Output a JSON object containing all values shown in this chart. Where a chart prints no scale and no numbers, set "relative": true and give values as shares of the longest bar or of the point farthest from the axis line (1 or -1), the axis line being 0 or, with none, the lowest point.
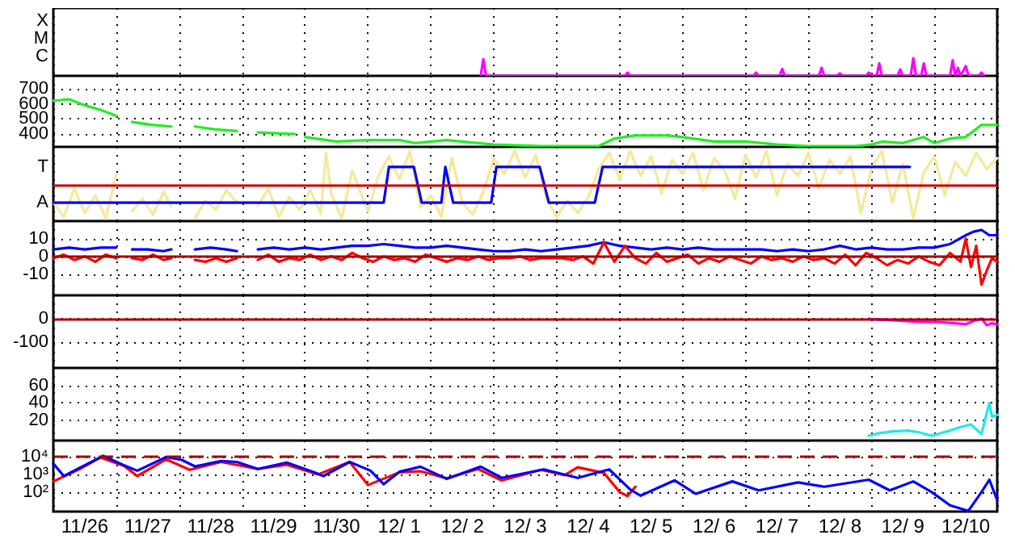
{
  "chart_data": [
    {
      "type": "line",
      "relative": true,
      "annotations": [
        "X",
        "M",
        "C"
      ],
      "grid": "x",
      "tick_labels": false,
      "xlim": [
        "--11-26T00:00",
        "--12-11T00:00"
      ],
      "xticks": [
        {
          "value": "--11-26T00:00",
          "label": null
        },
        {
          "value": "--11-27T00:00",
          "label": null
        },
        {
          "value": "--11-28T00:00",
          "label": null
        },
        {
          "value": "--11-29T00:00",
          "label": null
        },
        {
          "value": "--11-30T00:00",
          "label": null
        },
        {
          "value": "--12-01T00:00",
          "label": null
        },
        {
          "value": "--12-02T00:00",
          "label": null
        },
        {
          "value": "--12-03T00:00",
          "label": null
        },
        {
          "value": "--12-04T00:00",
          "label": null
        },
        {
          "value": "--12-05T00:00",
          "label": null
        },
        {
          "value": "--12-06T00:00",
          "label": null
        },
        {
          "value": "--12-07T00:00",
          "label": null
        },
        {
          "value": "--12-08T00:00",
          "label": null
        },
        {
          "value": "--12-09T00:00",
          "label": null
        },
        {
          "value": "--12-10T00:00",
          "label": null
        },
        {
          "value": "--12-11T00:00",
          "label": null
        }
      ],
      "series": [
        {
          "color": "#ff00ff",
          "x": [
            "--12-02T19:00",
            "--12-02T20:00",
            "--12-02T21:00",
            "--12-05T02:00",
            "--12-05T03:00",
            "--12-05T04:00",
            "--12-07T03:00",
            "--12-07T04:00",
            "--12-07T05:00",
            "--12-07T13:00",
            "--12-07T14:00",
            "--12-07T15:00",
            "--12-08T04:00",
            "--12-08T05:00",
            "--12-08T06:00",
            "--12-08T11:00",
            "--12-08T12:00",
            "--12-08T13:00",
            "--12-08T22:00",
            "--12-08T23:00",
            "--12-09T01:00",
            "--12-09T02:00",
            "--12-09T03:00",
            "--12-09T04:00",
            "--12-09T10:00",
            "--12-09T11:00",
            "--12-09T12:00",
            "--12-09T15:00",
            "--12-09T16:00",
            "--12-09T17:00",
            "--12-09T19:00",
            "--12-09T20:00",
            "--12-09T21:00",
            "--12-10T06:00",
            "--12-10T07:00",
            "--12-10T08:00",
            "--12-10T09:00",
            "--12-10T10:00",
            "--12-10T12:00",
            "--12-10T13:00",
            "--12-10T17:00",
            "--12-10T18:00",
            "--12-10T19:00"
          ],
          "values": [
            0,
            0.94,
            0,
            0,
            0.18,
            0,
            0,
            0.18,
            0,
            0,
            0.39,
            0,
            0,
            0.45,
            0,
            0,
            0.14,
            0,
            0,
            0.18,
            0,
            0,
            0.7,
            0,
            0,
            0.36,
            0,
            0,
            1,
            0,
            0,
            0.7,
            0,
            0,
            0.88,
            0,
            0.45,
            0,
            0.55,
            0,
            0,
            0.18,
            0
          ]
        }
      ]
    },
    {
      "type": "line",
      "ylim": [
        315,
        785
      ],
      "yticks": [
        700,
        600,
        500,
        400
      ],
      "grid": true,
      "tick_labels": "y",
      "xlim": [
        "--11-26T00:00",
        "--12-11T00:00"
      ],
      "xticks": [
        {
          "value": "--11-26T00:00",
          "label": null
        },
        {
          "value": "--11-27T00:00",
          "label": null
        },
        {
          "value": "--11-28T00:00",
          "label": null
        },
        {
          "value": "--11-29T00:00",
          "label": null
        },
        {
          "value": "--11-30T00:00",
          "label": null
        },
        {
          "value": "--12-01T00:00",
          "label": null
        },
        {
          "value": "--12-02T00:00",
          "label": null
        },
        {
          "value": "--12-03T00:00",
          "label": null
        },
        {
          "value": "--12-04T00:00",
          "label": null
        },
        {
          "value": "--12-05T00:00",
          "label": null
        },
        {
          "value": "--12-06T00:00",
          "label": null
        },
        {
          "value": "--12-07T00:00",
          "label": null
        },
        {
          "value": "--12-08T00:00",
          "label": null
        },
        {
          "value": "--12-09T00:00",
          "label": null
        },
        {
          "value": "--12-10T00:00",
          "label": null
        },
        {
          "value": "--12-11T00:00",
          "label": null
        }
      ],
      "series": [
        {
          "color": "#22ee22",
          "x": [
            "--11-26T00:00",
            "--11-26T06:00",
            "--11-26T12:00",
            "--11-26T18:00",
            "--11-27T00:00",
            "--11-27T03:00",
            "--11-27T06:00",
            "--11-27T14:00",
            "--11-27T21:00",
            "--11-28T02:00",
            "--11-28T06:00",
            "--11-28T14:00",
            "--11-28T22:00",
            "--11-29T02:00",
            "--11-29T06:00",
            "--11-29T20:00",
            "--11-29T22:00",
            "--11-30T00:00",
            "--11-30T12:00",
            "--12-01T00:00",
            "--12-01T12:00",
            "--12-01T18:00",
            "--12-02T06:00",
            "--12-02T18:00",
            "--12-03T00:00",
            "--12-03T18:00",
            "--12-04T00:00",
            "--12-04T12:00",
            "--12-04T16:00",
            "--12-04T22:00",
            "--12-05T06:00",
            "--12-05T18:00",
            "--12-06T00:00",
            "--12-06T12:00",
            "--12-07T00:00",
            "--12-07T12:00",
            "--12-08T00:00",
            "--12-08T12:00",
            "--12-08T18:00",
            "--12-09T00:00",
            "--12-09T04:00",
            "--12-09T12:00",
            "--12-09T20:00",
            "--12-10T00:00",
            "--12-10T06:00",
            "--12-10T12:00",
            "--12-10T18:00",
            "--12-11T00:00"
          ],
          "values": [
            620,
            630,
            590,
            560,
            520,
            null,
            480,
            460,
            450,
            null,
            450,
            430,
            420,
            null,
            410,
            400,
            null,
            380,
            350,
            360,
            360,
            340,
            360,
            340,
            330,
            320,
            320,
            320,
            320,
            370,
            390,
            390,
            380,
            350,
            350,
            330,
            320,
            320,
            320,
            330,
            350,
            340,
            380,
            340,
            370,
            380,
            460,
            460
          ]
        }
      ]
    },
    {
      "type": "line",
      "relative": true,
      "annotations": [
        "T",
        "A"
      ],
      "grid": "x",
      "tick_labels": false,
      "xlim": [
        "--11-26T00:00",
        "--12-11T00:00"
      ],
      "xticks": [
        {
          "value": "--11-26T00:00",
          "label": null
        },
        {
          "value": "--11-27T00:00",
          "label": null
        },
        {
          "value": "--11-28T00:00",
          "label": null
        },
        {
          "value": "--11-29T00:00",
          "label": null
        },
        {
          "value": "--11-30T00:00",
          "label": null
        },
        {
          "value": "--12-01T00:00",
          "label": null
        },
        {
          "value": "--12-02T00:00",
          "label": null
        },
        {
          "value": "--12-03T00:00",
          "label": null
        },
        {
          "value": "--12-04T00:00",
          "label": null
        },
        {
          "value": "--12-05T00:00",
          "label": null
        },
        {
          "value": "--12-06T00:00",
          "label": null
        },
        {
          "value": "--12-07T00:00",
          "label": null
        },
        {
          "value": "--12-08T00:00",
          "label": null
        },
        {
          "value": "--12-09T00:00",
          "label": null
        },
        {
          "value": "--12-10T00:00",
          "label": null
        },
        {
          "value": "--12-11T00:00",
          "label": null
        }
      ],
      "ref_lines": [
        {
          "axis": "y",
          "value": 0,
          "color": "#cc0000"
        }
      ],
      "series": [
        {
          "color": "#f7e79a",
          "x": [
            "--11-26T00:00",
            "--11-26T04:00",
            "--11-26T08:00",
            "--11-26T12:00",
            "--11-26T16:00",
            "--11-26T20:00",
            "--11-27T00:00",
            "--11-27T03:00",
            "--11-27T06:00",
            "--11-27T10:00",
            "--11-27T14:00",
            "--11-27T18:00",
            "--11-27T21:00",
            "--11-28T02:00",
            "--11-28T06:00",
            "--11-28T10:00",
            "--11-28T14:00",
            "--11-28T18:00",
            "--11-28T22:00",
            "--11-29T02:00",
            "--11-29T06:00",
            "--11-29T10:00",
            "--11-29T14:00",
            "--11-29T18:00",
            "--11-29T22:00",
            "--11-30T02:00",
            "--11-30T06:00",
            "--11-30T08:00",
            "--11-30T10:00",
            "--11-30T14:00",
            "--11-30T18:00",
            "--12-01T00:00",
            "--12-01T04:00",
            "--12-01T08:00",
            "--12-01T12:00",
            "--12-01T16:00",
            "--12-01T20:00",
            "--12-02T00:00",
            "--12-02T04:00",
            "--12-02T08:00",
            "--12-02T12:00",
            "--12-02T16:00",
            "--12-02T20:00",
            "--12-03T00:00",
            "--12-03T04:00",
            "--12-03T08:00",
            "--12-03T12:00",
            "--12-03T16:00",
            "--12-03T20:00",
            "--12-04T00:00",
            "--12-04T04:00",
            "--12-04T08:00",
            "--12-04T12:00",
            "--12-04T16:00",
            "--12-04T20:00",
            "--12-05T00:00",
            "--12-05T04:00",
            "--12-05T08:00",
            "--12-05T12:00",
            "--12-05T16:00",
            "--12-05T20:00",
            "--12-06T00:00",
            "--12-06T04:00",
            "--12-06T08:00",
            "--12-06T12:00",
            "--12-06T16:00",
            "--12-06T20:00",
            "--12-07T00:00",
            "--12-07T04:00",
            "--12-07T08:00",
            "--12-07T12:00",
            "--12-07T16:00",
            "--12-07T20:00",
            "--12-08T00:00",
            "--12-08T04:00",
            "--12-08T08:00",
            "--12-08T12:00",
            "--12-08T16:00",
            "--12-08T20:00",
            "--12-09T00:00",
            "--12-09T04:00",
            "--12-09T08:00",
            "--12-09T12:00",
            "--12-09T16:00",
            "--12-09T20:00",
            "--12-10T00:00",
            "--12-10T04:00",
            "--12-10T08:00",
            "--12-10T12:00",
            "--12-10T16:00",
            "--12-10T20:00",
            "--12-11T00:00"
          ],
          "values": [
            -0.53,
            -0.95,
            -0.11,
            -0.84,
            -0.32,
            -1,
            0.32,
            null,
            -0.79,
            -0.42,
            -0.89,
            -0.21,
            -0.63,
            null,
            -1,
            -0.47,
            -0.74,
            -0.16,
            -0.53,
            null,
            -0.63,
            -0.11,
            -0.95,
            -0.37,
            -0.74,
            -0.16,
            -0.84,
            0.95,
            -0.26,
            -1,
            0.42,
            -0.79,
            0.26,
            0.84,
            0.16,
            1,
            -0.68,
            -0.32,
            -0.95,
            0.79,
            -0.53,
            -0.89,
            -0.21,
            0.79,
            0.32,
            1,
            0.21,
            0.89,
            -0.42,
            -0.95,
            -0.47,
            -0.84,
            -0.37,
            0.47,
            0.95,
            0.16,
            1,
            0.26,
            0.84,
            -0.26,
            0.74,
            0.32,
            0.95,
            -0.16,
            0.79,
            0.42,
            -0.42,
            0.89,
            0.21,
            1,
            -0.32,
            0.63,
            0.26,
            0.95,
            -0.11,
            0.74,
            0.32,
            0.84,
            -0.84,
            0.47,
            1,
            -0.53,
            0.63,
            -1,
            0.37,
            0.84,
            -0.32,
            0.68,
            0.26,
            0.95,
            0.47,
            0.79
          ]
        },
        {
          "color": "#0000ff",
          "x": [
            "--11-26T00:00",
            "--12-01T06:00",
            "--12-01T08:00",
            "--12-01T17:30",
            "--12-01T20:30",
            "--12-02T04:00",
            "--12-02T05:30",
            "--12-02T08:30",
            "--12-02T23:00",
            "--12-03T01:00",
            "--12-03T17:30",
            "--12-03T21:00",
            "--12-04T14:30",
            "--12-04T17:30",
            "--12-09T14:40"
          ],
          "values": [
            -0.53,
            -0.53,
            0.53,
            0.53,
            -0.53,
            -0.53,
            0.53,
            -0.53,
            -0.53,
            0.53,
            0.53,
            -0.53,
            -0.53,
            0.53,
            0.53
          ]
        }
      ]
    },
    {
      "type": "line",
      "ylim": [
        -22,
        20
      ],
      "yticks": [
        10,
        0,
        -10
      ],
      "grid": true,
      "tick_labels": "y",
      "xlim": [
        "--11-26T00:00",
        "--12-11T00:00"
      ],
      "xticks": [
        {
          "value": "--11-26T00:00",
          "label": null
        },
        {
          "value": "--11-27T00:00",
          "label": null
        },
        {
          "value": "--11-28T00:00",
          "label": null
        },
        {
          "value": "--11-29T00:00",
          "label": null
        },
        {
          "value": "--11-30T00:00",
          "label": null
        },
        {
          "value": "--12-01T00:00",
          "label": null
        },
        {
          "value": "--12-02T00:00",
          "label": null
        },
        {
          "value": "--12-03T00:00",
          "label": null
        },
        {
          "value": "--12-04T00:00",
          "label": null
        },
        {
          "value": "--12-05T00:00",
          "label": null
        },
        {
          "value": "--12-06T00:00",
          "label": null
        },
        {
          "value": "--12-07T00:00",
          "label": null
        },
        {
          "value": "--12-08T00:00",
          "label": null
        },
        {
          "value": "--12-09T00:00",
          "label": null
        },
        {
          "value": "--12-10T00:00",
          "label": null
        },
        {
          "value": "--12-11T00:00",
          "label": null
        }
      ],
      "ref_lines": [
        {
          "axis": "y",
          "value": 0,
          "color": "#aa0000"
        }
      ],
      "series": [
        {
          "color": "#0000ff",
          "x": [
            "--11-26T00:00",
            "--11-26T06:00",
            "--11-26T12:00",
            "--11-26T18:00",
            "--11-27T00:00",
            "--11-27T03:00",
            "--11-27T06:00",
            "--11-27T12:00",
            "--11-27T18:00",
            "--11-27T21:00",
            "--11-28T02:00",
            "--11-28T06:00",
            "--11-28T12:00",
            "--11-28T18:00",
            "--11-28T22:00",
            "--11-29T02:00",
            "--11-29T06:00",
            "--11-29T12:00",
            "--11-29T18:00",
            "--11-30T00:00",
            "--11-30T06:00",
            "--11-30T12:00",
            "--11-30T18:00",
            "--12-01T00:00",
            "--12-01T06:00",
            "--12-01T12:00",
            "--12-01T18:00",
            "--12-02T00:00",
            "--12-02T06:00",
            "--12-02T12:00",
            "--12-02T18:00",
            "--12-03T00:00",
            "--12-03T06:00",
            "--12-03T12:00",
            "--12-03T18:00",
            "--12-04T00:00",
            "--12-04T06:00",
            "--12-04T12:00",
            "--12-04T18:00",
            "--12-05T00:00",
            "--12-05T06:00",
            "--12-05T12:00",
            "--12-05T18:00",
            "--12-06T00:00",
            "--12-06T06:00",
            "--12-06T12:00",
            "--12-06T18:00",
            "--12-07T00:00",
            "--12-07T06:00",
            "--12-07T12:00",
            "--12-07T18:00",
            "--12-08T00:00",
            "--12-08T06:00",
            "--12-08T12:00",
            "--12-08T18:00",
            "--12-09T00:00",
            "--12-09T06:00",
            "--12-09T12:00",
            "--12-09T18:00",
            "--12-10T00:00",
            "--12-10T06:00",
            "--12-10T12:00",
            "--12-10T15:00",
            "--12-10T18:00",
            "--12-10T21:00",
            "--12-11T00:00"
          ],
          "values": [
            4,
            5,
            4,
            5,
            5,
            null,
            4,
            4,
            3,
            4,
            null,
            4,
            5,
            4,
            3,
            null,
            4,
            5,
            4,
            5,
            4,
            5,
            6,
            6,
            7,
            6,
            5,
            5,
            6,
            5,
            4,
            3,
            3,
            4,
            3,
            4,
            5,
            6,
            8,
            6,
            5,
            4,
            5,
            4,
            5,
            4,
            4,
            4,
            4,
            3,
            4,
            3,
            4,
            6,
            4,
            5,
            4,
            4,
            5,
            5,
            7,
            12,
            14,
            15,
            12,
            12
          ]
        },
        {
          "color": "#ff0000",
          "x": [
            "--11-26T00:00",
            "--11-26T04:00",
            "--11-26T08:00",
            "--11-26T12:00",
            "--11-26T16:00",
            "--11-26T20:00",
            "--11-27T00:00",
            "--11-27T03:00",
            "--11-27T06:00",
            "--11-27T10:00",
            "--11-27T14:00",
            "--11-27T18:00",
            "--11-27T21:00",
            "--11-28T02:00",
            "--11-28T06:00",
            "--11-28T10:00",
            "--11-28T14:00",
            "--11-28T18:00",
            "--11-28T22:00",
            "--11-29T02:00",
            "--11-29T06:00",
            "--11-29T10:00",
            "--11-29T14:00",
            "--11-29T18:00",
            "--11-29T22:00",
            "--11-30T02:00",
            "--11-30T06:00",
            "--11-30T10:00",
            "--11-30T14:00",
            "--11-30T18:00",
            "--11-30T22:00",
            "--12-01T02:00",
            "--12-01T06:00",
            "--12-01T10:00",
            "--12-01T14:00",
            "--12-01T18:00",
            "--12-01T22:00",
            "--12-02T02:00",
            "--12-02T06:00",
            "--12-02T10:00",
            "--12-02T14:00",
            "--12-02T18:00",
            "--12-02T22:00",
            "--12-03T02:00",
            "--12-03T06:00",
            "--12-03T10:00",
            "--12-03T14:00",
            "--12-03T18:00",
            "--12-03T22:00",
            "--12-04T02:00",
            "--12-04T06:00",
            "--12-04T10:00",
            "--12-04T14:00",
            "--12-04T18:00",
            "--12-04T22:00",
            "--12-05T02:00",
            "--12-05T06:00",
            "--12-05T10:00",
            "--12-05T14:00",
            "--12-05T18:00",
            "--12-05T22:00",
            "--12-06T02:00",
            "--12-06T06:00",
            "--12-06T10:00",
            "--12-06T14:00",
            "--12-06T18:00",
            "--12-06T22:00",
            "--12-07T02:00",
            "--12-07T06:00",
            "--12-07T10:00",
            "--12-07T14:00",
            "--12-07T18:00",
            "--12-07T22:00",
            "--12-08T02:00",
            "--12-08T06:00",
            "--12-08T10:00",
            "--12-08T14:00",
            "--12-08T18:00",
            "--12-08T22:00",
            "--12-09T02:00",
            "--12-09T06:00",
            "--12-09T10:00",
            "--12-09T14:00",
            "--12-09T18:00",
            "--12-09T22:00",
            "--12-10T02:00",
            "--12-10T06:00",
            "--12-10T10:00",
            "--12-10T12:00",
            "--12-10T14:00",
            "--12-10T16:00",
            "--12-10T18:00",
            "--12-10T20:00",
            "--12-10T22:00",
            "--12-11T00:00"
          ],
          "values": [
            -1,
            1,
            -2,
            0,
            -3,
            1,
            -1,
            null,
            -1,
            -2,
            1,
            -2,
            -1,
            null,
            -2,
            -3,
            -1,
            -3,
            -1,
            null,
            -2,
            1,
            -3,
            -1,
            -2,
            1,
            -2,
            0,
            -2,
            2,
            -1,
            -3,
            0,
            -2,
            -1,
            -3,
            1,
            -1,
            -3,
            -1,
            -2,
            0,
            -2,
            -1,
            -1,
            0,
            -2,
            -1,
            -1,
            -1,
            -2,
            0,
            -4,
            8,
            -3,
            6,
            -1,
            -4,
            2,
            -3,
            -1,
            1,
            -4,
            -1,
            -3,
            0,
            -2,
            -4,
            0,
            -2,
            -1,
            -3,
            0,
            -2,
            -1,
            -4,
            1,
            -5,
            2,
            -1,
            -5,
            -2,
            -4,
            0,
            -3,
            -5,
            2,
            -3,
            10,
            -6,
            6,
            -16,
            -8,
            -1,
            -3
          ]
        }
      ]
    },
    {
      "type": "line",
      "ylim": [
        -212,
        100
      ],
      "yticks": [
        0,
        -100
      ],
      "grid": true,
      "tick_labels": "y",
      "xlim": [
        "--11-26T00:00",
        "--12-11T00:00"
      ],
      "xticks": [
        {
          "value": "--11-26T00:00",
          "label": null
        },
        {
          "value": "--11-27T00:00",
          "label": null
        },
        {
          "value": "--11-28T00:00",
          "label": null
        },
        {
          "value": "--11-29T00:00",
          "label": null
        },
        {
          "value": "--11-30T00:00",
          "label": null
        },
        {
          "value": "--12-01T00:00",
          "label": null
        },
        {
          "value": "--12-02T00:00",
          "label": null
        },
        {
          "value": "--12-03T00:00",
          "label": null
        },
        {
          "value": "--12-04T00:00",
          "label": null
        },
        {
          "value": "--12-05T00:00",
          "label": null
        },
        {
          "value": "--12-06T00:00",
          "label": null
        },
        {
          "value": "--12-07T00:00",
          "label": null
        },
        {
          "value": "--12-08T00:00",
          "label": null
        },
        {
          "value": "--12-09T00:00",
          "label": null
        },
        {
          "value": "--12-10T00:00",
          "label": null
        },
        {
          "value": "--12-11T00:00",
          "label": null
        }
      ],
      "ref_lines": [
        {
          "axis": "y",
          "value": 0,
          "color": "#aa0000"
        }
      ],
      "series": [
        {
          "color": "#ff00ff",
          "x": [
            "--12-08T23:00",
            "--12-09T00:00",
            "--12-09T06:00",
            "--12-09T12:00",
            "--12-09T18:00",
            "--12-10T00:00",
            "--12-10T06:00",
            "--12-10T12:00",
            "--12-10T15:00",
            "--12-10T18:00",
            "--12-10T20:00",
            "--12-10T22:00",
            "--12-11T00:00"
          ],
          "values": [
            0,
            -3,
            -5,
            -10,
            -14,
            -14,
            -18,
            -24,
            -10,
            0,
            -28,
            -20,
            -25
          ]
        }
      ]
    },
    {
      "type": "line",
      "ylim": [
        -3.5,
        80
      ],
      "yticks": [
        60,
        40,
        20
      ],
      "grid": true,
      "tick_labels": "y",
      "xlim": [
        "--11-26T00:00",
        "--12-11T00:00"
      ],
      "xticks": [
        {
          "value": "--11-26T00:00",
          "label": null
        },
        {
          "value": "--11-27T00:00",
          "label": null
        },
        {
          "value": "--11-28T00:00",
          "label": null
        },
        {
          "value": "--11-29T00:00",
          "label": null
        },
        {
          "value": "--11-30T00:00",
          "label": null
        },
        {
          "value": "--12-01T00:00",
          "label": null
        },
        {
          "value": "--12-02T00:00",
          "label": null
        },
        {
          "value": "--12-03T00:00",
          "label": null
        },
        {
          "value": "--12-04T00:00",
          "label": null
        },
        {
          "value": "--12-05T00:00",
          "label": null
        },
        {
          "value": "--12-06T00:00",
          "label": null
        },
        {
          "value": "--12-07T00:00",
          "label": null
        },
        {
          "value": "--12-08T00:00",
          "label": null
        },
        {
          "value": "--12-09T00:00",
          "label": null
        },
        {
          "value": "--12-10T00:00",
          "label": null
        },
        {
          "value": "--12-11T00:00",
          "label": null
        }
      ],
      "series": [
        {
          "color": "#22e8e8",
          "x": [
            "--12-08T23:00",
            "--12-09T03:00",
            "--12-09T08:00",
            "--12-09T14:00",
            "--12-09T18:00",
            "--12-09T23:00",
            "--12-10T06:00",
            "--12-10T10:00",
            "--12-10T14:00",
            "--12-10T18:00",
            "--12-10T21:00",
            "--12-10T22:00",
            "--12-11T00:00"
          ],
          "values": [
            2,
            5,
            7,
            8,
            6,
            2,
            8,
            12,
            15,
            4,
            40,
            24,
            26
          ]
        }
      ]
    },
    {
      "type": "line",
      "log": true,
      "ylim": [
        8,
        80000
      ],
      "yticks": [
        {
          "value": 10000,
          "label": "10⁴"
        },
        {
          "value": 1000,
          "label": "10³"
        },
        {
          "value": 100,
          "label": "10²"
        }
      ],
      "grid": true,
      "xlim": [
        "--11-26T00:00",
        "--12-11T00:00"
      ],
      "xticks": [
        {
          "value": "--11-26T00:00",
          "label": null
        },
        {
          "value": "--11-26T12:00",
          "label": "11/26"
        },
        {
          "value": "--11-27T00:00",
          "label": null
        },
        {
          "value": "--11-27T12:00",
          "label": "11/27"
        },
        {
          "value": "--11-28T00:00",
          "label": null
        },
        {
          "value": "--11-28T12:00",
          "label": "11/28"
        },
        {
          "value": "--11-29T00:00",
          "label": null
        },
        {
          "value": "--11-29T12:00",
          "label": "11/29"
        },
        {
          "value": "--11-30T00:00",
          "label": null
        },
        {
          "value": "--11-30T12:00",
          "label": "11/30"
        },
        {
          "value": "--12-01T00:00",
          "label": null
        },
        {
          "value": "--12-01T12:00",
          "label": "12/ 1"
        },
        {
          "value": "--12-02T00:00",
          "label": null
        },
        {
          "value": "--12-02T12:00",
          "label": "12/ 2"
        },
        {
          "value": "--12-03T00:00",
          "label": null
        },
        {
          "value": "--12-03T12:00",
          "label": "12/ 3"
        },
        {
          "value": "--12-04T00:00",
          "label": null
        },
        {
          "value": "--12-04T12:00",
          "label": "12/ 4"
        },
        {
          "value": "--12-05T00:00",
          "label": null
        },
        {
          "value": "--12-05T12:00",
          "label": "12/ 5"
        },
        {
          "value": "--12-06T00:00",
          "label": null
        },
        {
          "value": "--12-06T12:00",
          "label": "12/ 6"
        },
        {
          "value": "--12-07T00:00",
          "label": null
        },
        {
          "value": "--12-07T12:00",
          "label": "12/ 7"
        },
        {
          "value": "--12-08T00:00",
          "label": null
        },
        {
          "value": "--12-08T12:00",
          "label": "12/ 8"
        },
        {
          "value": "--12-09T00:00",
          "label": null
        },
        {
          "value": "--12-09T12:00",
          "label": "12/ 9"
        },
        {
          "value": "--12-10T00:00",
          "label": null
        },
        {
          "value": "--12-10T12:00",
          "label": "12/10"
        },
        {
          "value": "--12-11T00:00",
          "label": null
        }
      ],
      "ref_lines": [
        {
          "axis": "y",
          "value": 10000,
          "color": "#aa0000",
          "line_style": "dashed"
        }
      ],
      "series": [
        {
          "color": "#ff0000",
          "x": [
            "--11-26T00:00",
            "--11-26T10:00",
            "--11-26T18:00",
            "--11-27T03:00",
            "--11-27T08:00",
            "--11-27T19:00",
            "--11-28T04:00",
            "--11-28T16:00",
            "--11-29T06:00",
            "--11-29T17:00",
            "--11-30T05:00",
            "--11-30T17:00",
            "--12-01T00:00",
            "--12-01T12:00",
            "--12-01T20:00",
            "--12-02T06:00",
            "--12-02T18:00",
            "--12-03T03:00",
            "--12-03T18:00",
            "--12-04T03:00",
            "--12-04T08:00",
            "--12-04T18:00",
            "--12-05T00:00",
            "--12-05T03:00",
            "--12-05T06:00"
          ],
          "values": [
            400,
            2000,
            9000,
            3000,
            800,
            7000,
            1800,
            5000,
            2000,
            3500,
            1000,
            5000,
            250,
            1300,
            1500,
            600,
            2000,
            450,
            1800,
            900,
            2500,
            1200,
            100,
            60,
            200
          ]
        },
        {
          "color": "#0000ff",
          "x": [
            "--11-26T00:00",
            "--11-26T04:00",
            "--11-26T19:00",
            "--11-27T03:00",
            "--11-27T08:00",
            "--11-27T19:00",
            "--11-28T01:00",
            "--11-28T06:00",
            "--11-28T16:00",
            "--11-28T22:00",
            "--11-29T06:00",
            "--11-29T17:00",
            "--11-30T03:00",
            "--11-30T07:00",
            "--11-30T17:00",
            "--12-01T01:00",
            "--12-01T06:00",
            "--12-01T12:00",
            "--12-01T20:00",
            "--12-02T06:00",
            "--12-02T19:00",
            "--12-03T03:00",
            "--12-03T19:00",
            "--12-04T08:00",
            "--12-04T20:00",
            "--12-05T04:00",
            "--12-05T08:00",
            "--12-05T21:00",
            "--12-06T05:00",
            "--12-06T19:00",
            "--12-07T05:00",
            "--12-07T20:00",
            "--12-08T06:00",
            "--12-08T23:00",
            "--12-09T07:00",
            "--12-09T16:00",
            "--12-09T23:00",
            "--12-10T06:00",
            "--12-10T13:00",
            "--12-10T18:00",
            "--12-10T21:00",
            "--12-11T00:00"
          ],
          "values": [
            4000,
            800,
            11000,
            3200,
            1600,
            9400,
            6500,
            2800,
            5600,
            5000,
            2000,
            4600,
            1400,
            800,
            5000,
            1600,
            280,
            1400,
            2700,
            560,
            2700,
            630,
            1900,
            630,
            1900,
            140,
            63,
            460,
            80,
            400,
            125,
            350,
            200,
            500,
            125,
            400,
            100,
            18,
            8.7,
            100,
            500,
            35
          ]
        }
      ]
    }
  ]
}
